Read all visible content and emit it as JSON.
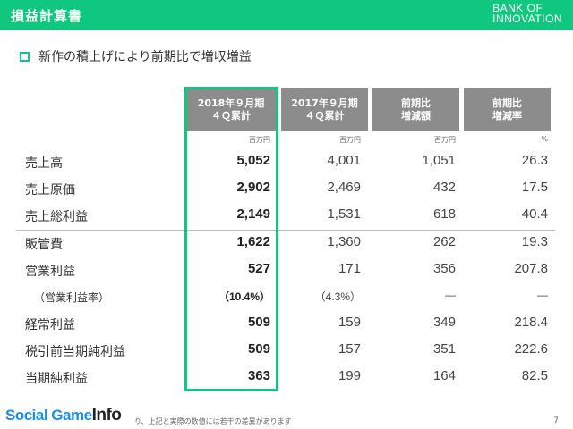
{
  "header": {
    "title": "損益計算書",
    "brand_line1": "BANK OF",
    "brand_line2": "INNOVATION",
    "color": "#10c77f"
  },
  "subtitle": "新作の積上げにより前期比で増収増益",
  "columns": [
    {
      "line1": "2018年９月期",
      "line2": "４Ｑ累計",
      "unit": "百万円"
    },
    {
      "line1": "2017年９月期",
      "line2": "４Ｑ累計",
      "unit": "百万円"
    },
    {
      "line1": "前期比",
      "line2": "増減額",
      "unit": "百万円"
    },
    {
      "line1": "前期比",
      "line2": "増減率",
      "unit": "%"
    }
  ],
  "rows": [
    {
      "label": "売上高",
      "values": [
        "5,052",
        "4,001",
        "1,051",
        "26.3"
      ]
    },
    {
      "label": "売上原価",
      "values": [
        "2,902",
        "2,469",
        "432",
        "17.5"
      ]
    },
    {
      "label": "売上総利益",
      "values": [
        "2,149",
        "1,531",
        "618",
        "40.4"
      ]
    },
    {
      "label": "販管費",
      "values": [
        "1,622",
        "1,360",
        "262",
        "19.3"
      ]
    },
    {
      "label": "営業利益",
      "values": [
        "527",
        "171",
        "356",
        "207.8"
      ]
    },
    {
      "label": "（営業利益率）",
      "values": [
        "（10.4%）",
        "（4.3%）",
        "—",
        "—"
      ]
    },
    {
      "label": "経常利益",
      "values": [
        "509",
        "159",
        "349",
        "218.4"
      ]
    },
    {
      "label": "税引前当期純利益",
      "values": [
        "509",
        "157",
        "351",
        "222.6"
      ]
    },
    {
      "label": "当期純利益",
      "values": [
        "363",
        "199",
        "164",
        "82.5"
      ]
    }
  ],
  "footer": {
    "logo_text": "Social Game",
    "logo_info": "Info",
    "note": "り、上記と実際の数値には若干の差異があります",
    "page": "7"
  }
}
